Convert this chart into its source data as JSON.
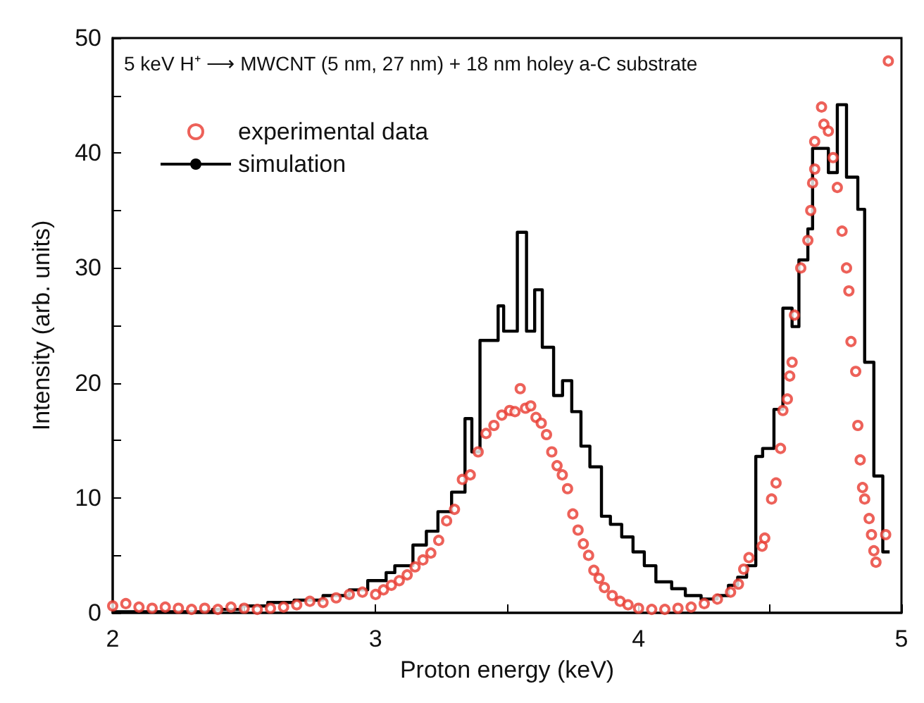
{
  "chart_data": {
    "type": "scatter",
    "xlabel": "Proton energy (keV)",
    "ylabel": "Intensity (arb. units)",
    "annotations": [
      "5 keV H⁺ ⟶ MWCNT (5 nm, 27 nm) + 18 nm holey a-C substrate"
    ],
    "xlim": [
      2,
      5
    ],
    "ylim": [
      0,
      50
    ],
    "xticks": [
      2,
      {
        "value": 2.5,
        "label": null
      },
      3,
      {
        "value": 3.5,
        "label": null
      },
      4,
      {
        "value": 4.5,
        "label": null
      },
      5
    ],
    "yticks": [
      0,
      {
        "value": 5,
        "label": null
      },
      10,
      {
        "value": 15,
        "label": null
      },
      20,
      {
        "value": 25,
        "label": null
      },
      30,
      {
        "value": 35,
        "label": null
      },
      40,
      {
        "value": 45,
        "label": null
      },
      50
    ],
    "grid": false,
    "legend": "top left",
    "series": [
      {
        "name": "experimental data",
        "marker": "circle",
        "color": "#e8392f",
        "x": [
          2.0,
          2.05,
          2.1,
          2.15,
          2.2,
          2.25,
          2.3,
          2.35,
          2.4,
          2.45,
          2.5,
          2.55,
          2.6,
          2.65,
          2.7,
          2.75,
          2.8,
          2.85,
          2.9,
          2.95,
          3.0,
          3.03,
          3.06,
          3.09,
          3.12,
          3.15,
          3.18,
          3.21,
          3.24,
          3.27,
          3.3,
          3.33,
          3.36,
          3.39,
          3.42,
          3.45,
          3.48,
          3.51,
          3.53,
          3.55,
          3.57,
          3.59,
          3.61,
          3.63,
          3.65,
          3.67,
          3.69,
          3.71,
          3.73,
          3.75,
          3.77,
          3.79,
          3.81,
          3.83,
          3.85,
          3.87,
          3.9,
          3.93,
          3.96,
          4.0,
          4.05,
          4.1,
          4.15,
          4.2,
          4.25,
          4.3,
          4.35,
          4.38,
          4.4,
          4.42,
          4.47,
          4.48,
          4.506,
          4.523,
          4.54,
          4.549,
          4.566,
          4.575,
          4.584,
          4.593,
          4.617,
          4.644,
          4.655,
          4.662,
          4.67,
          4.67,
          4.696,
          4.705,
          4.722,
          4.74,
          4.756,
          4.774,
          4.791,
          4.8,
          4.808,
          4.826,
          4.834,
          4.843,
          4.852,
          4.86,
          4.877,
          4.886,
          4.895,
          4.903,
          4.94,
          4.95
        ],
        "values": [
          0.6,
          0.8,
          0.5,
          0.4,
          0.5,
          0.4,
          0.3,
          0.4,
          0.3,
          0.5,
          0.4,
          0.3,
          0.4,
          0.5,
          0.7,
          1.0,
          0.9,
          1.3,
          1.6,
          1.8,
          1.6,
          2.0,
          2.4,
          2.8,
          3.3,
          4.0,
          4.6,
          5.2,
          6.3,
          8.0,
          9.0,
          11.6,
          12.0,
          14.0,
          15.6,
          16.3,
          17.2,
          17.6,
          17.5,
          19.5,
          17.8,
          18.0,
          17.0,
          16.5,
          15.5,
          14.0,
          12.8,
          12.0,
          10.8,
          8.6,
          7.2,
          6.0,
          5.0,
          3.7,
          3.0,
          2.2,
          1.5,
          1.0,
          0.7,
          0.4,
          0.3,
          0.3,
          0.4,
          0.5,
          0.8,
          1.2,
          1.8,
          2.5,
          3.8,
          4.8,
          5.8,
          6.5,
          9.9,
          11.3,
          14.3,
          17.6,
          18.6,
          20.6,
          21.8,
          25.9,
          30.0,
          32.4,
          35.0,
          37.4,
          38.6,
          41.0,
          44.0,
          42.5,
          41.9,
          39.6,
          37.0,
          33.2,
          30.0,
          28.0,
          23.6,
          21.0,
          16.3,
          13.3,
          10.9,
          9.9,
          8.2,
          6.8,
          5.4,
          4.4,
          6.8,
          48.0
        ]
      },
      {
        "name": "simulation",
        "type": "step",
        "marker": "none",
        "line_style": "solid",
        "color": "#000000",
        "x": [
          2.0,
          2.38,
          2.49,
          2.59,
          2.69,
          2.8,
          2.9,
          2.97,
          3.04,
          3.073,
          3.142,
          3.193,
          3.237,
          3.289,
          3.34,
          3.366,
          3.397,
          3.466,
          3.487,
          3.539,
          3.574,
          3.605,
          3.634,
          3.677,
          3.711,
          3.746,
          3.781,
          3.815,
          3.859,
          3.893,
          3.936,
          3.979,
          4.022,
          4.066,
          4.126,
          4.178,
          4.238,
          4.299,
          4.342,
          4.377,
          4.411,
          4.446,
          4.472,
          4.515,
          4.549,
          4.584,
          4.61,
          4.644,
          4.662,
          4.722,
          4.756,
          4.791,
          4.834,
          4.86,
          4.895,
          4.929,
          4.955
        ],
        "values": [
          0.1,
          0.3,
          0.6,
          0.9,
          1.1,
          1.5,
          2.0,
          2.8,
          3.5,
          4.1,
          5.9,
          7.1,
          8.8,
          10.5,
          16.9,
          14.0,
          23.7,
          26.7,
          24.5,
          33.1,
          24.5,
          28.1,
          23.1,
          18.9,
          20.2,
          17.5,
          14.5,
          12.7,
          8.4,
          7.7,
          6.6,
          5.3,
          4.1,
          2.7,
          2.1,
          1.5,
          1.2,
          1.5,
          2.4,
          3.1,
          4.1,
          13.6,
          14.3,
          17.7,
          26.5,
          24.9,
          30.7,
          33.4,
          40.4,
          38.3,
          44.2,
          37.9,
          35.1,
          21.8,
          11.9,
          5.3,
          5.3
        ]
      }
    ]
  }
}
